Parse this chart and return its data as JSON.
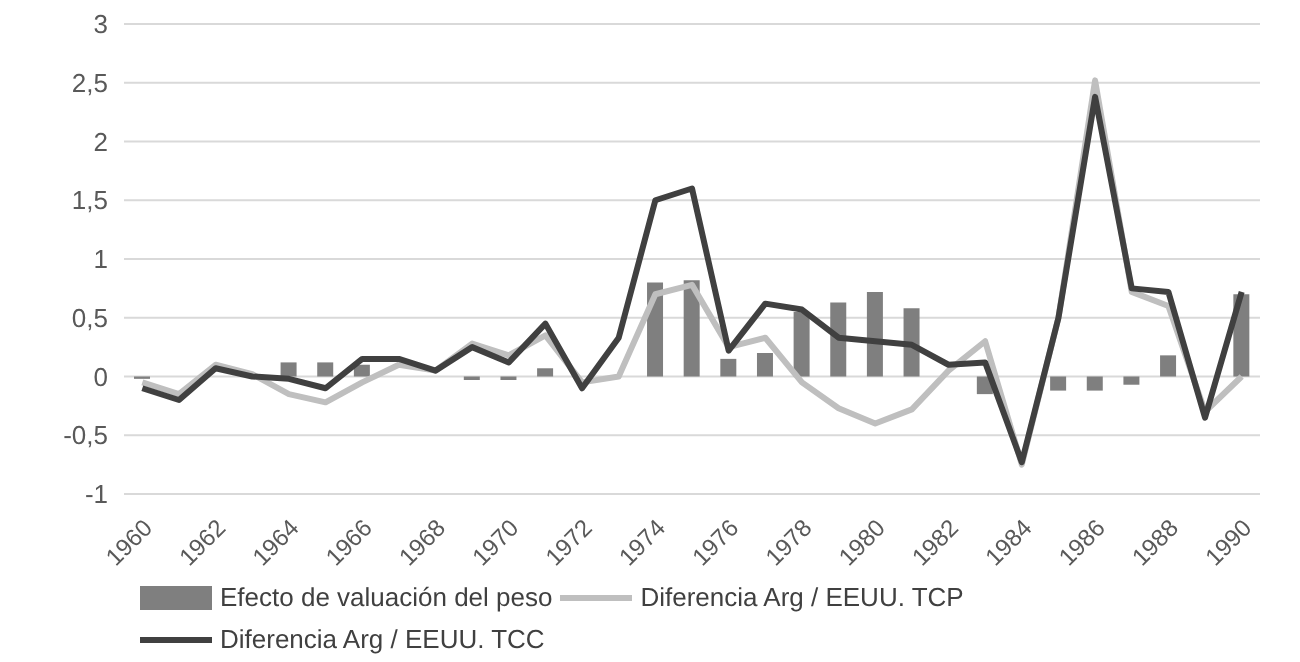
{
  "chart_data": {
    "type": "bar",
    "categories": [
      "1960",
      null,
      "1962",
      null,
      "1964",
      null,
      "1966",
      null,
      "1968",
      null,
      "1970",
      null,
      "1972",
      null,
      "1974",
      null,
      "1976",
      null,
      "1978",
      null,
      "1980",
      null,
      "1982",
      null,
      "1984",
      null,
      "1986",
      null,
      "1988",
      null,
      "1990"
    ],
    "series": [
      {
        "name": "Efecto de valuación del peso",
        "color": "#7f7f7f",
        "values": [
          -0.02,
          0,
          0,
          0,
          0.12,
          0.12,
          0.1,
          0,
          0,
          -0.03,
          -0.03,
          0.07,
          0,
          0,
          0.8,
          0.82,
          0.15,
          0.2,
          0.55,
          0.63,
          0.72,
          0.58,
          0,
          -0.15,
          0,
          -0.12,
          -0.12,
          -0.07,
          0.18,
          0,
          0.7
        ]
      },
      {
        "name": "Diferencia Arg / EEUU. TCP",
        "type": "line",
        "color": "#bfbfbf",
        "values": [
          -0.05,
          -0.15,
          0.1,
          0.02,
          -0.15,
          -0.22,
          -0.05,
          0.1,
          0.05,
          0.28,
          0.18,
          0.35,
          -0.05,
          0,
          0.7,
          0.78,
          0.25,
          0.33,
          -0.05,
          -0.27,
          -0.4,
          -0.28,
          0.05,
          0.3,
          -0.75,
          0.5,
          2.52,
          0.72,
          0.6,
          -0.3,
          0
        ]
      },
      {
        "name": "Diferencia Arg / EEUU. TCC",
        "type": "line",
        "color": "#404040",
        "values": [
          -0.1,
          -0.2,
          0.07,
          0,
          -0.02,
          -0.1,
          0.15,
          0.15,
          0.05,
          0.25,
          0.12,
          0.45,
          -0.1,
          0.33,
          1.5,
          1.6,
          0.22,
          0.62,
          0.57,
          0.33,
          0.3,
          0.27,
          0.1,
          0.12,
          -0.73,
          0.5,
          2.38,
          0.75,
          0.72,
          -0.35,
          0.72
        ]
      }
    ],
    "ylim": [
      -1,
      3
    ],
    "yticks": [
      -1,
      {
        "value": -0.5,
        "label": "-0,5"
      },
      0,
      {
        "value": 0.5,
        "label": "0,5"
      },
      1,
      {
        "value": 1.5,
        "label": "1,5"
      },
      2,
      {
        "value": 2.5,
        "label": "2,5"
      },
      3
    ],
    "grid": "y",
    "legend": "bottom",
    "marker": "none"
  }
}
